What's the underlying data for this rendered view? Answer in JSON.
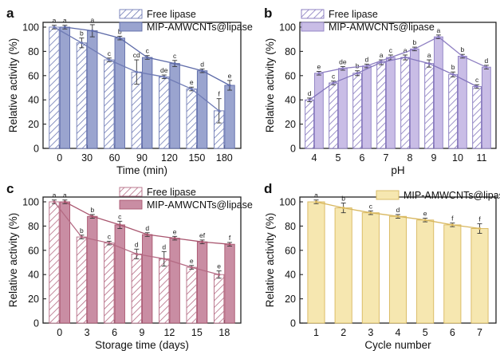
{
  "colors": {
    "blue_fill": "#9aa4cf",
    "blue_line": "#5d6aa8",
    "blue_hatch": "#6f7bb5",
    "purple_fill": "#c9bde6",
    "purple_line": "#8e7fc2",
    "purple_hatch": "#8476bd",
    "pink_fill": "#c98da3",
    "pink_line": "#a9566f",
    "pink_hatch": "#b46a83",
    "yellow_fill": "#f6e7b0",
    "yellow_line": "#d8b75e"
  },
  "chart_data": [
    {
      "panel": "a",
      "type": "bar",
      "xlabel": "Time (min)",
      "ylabel": "Relative activity (%)",
      "categories": [
        "0",
        "30",
        "60",
        "90",
        "120",
        "150",
        "180"
      ],
      "ylim": [
        0,
        100
      ],
      "yticks": [
        "0",
        "20",
        "40",
        "60",
        "80",
        "100"
      ],
      "legend_position": "top-right",
      "series": [
        {
          "name": "Free lipase",
          "style": "hatched",
          "values": [
            100,
            87,
            73,
            63,
            59,
            49,
            31
          ],
          "errors": [
            1.5,
            4,
            1.5,
            10,
            1.5,
            1.5,
            10
          ],
          "labels": [
            "a",
            "b",
            "c",
            "cd",
            "de",
            "e",
            "f"
          ]
        },
        {
          "name": "MIP-AMWCNTs@lipase",
          "style": "solid",
          "values": [
            100,
            97,
            91,
            75,
            70,
            64,
            52
          ],
          "errors": [
            1.5,
            5,
            1.5,
            1.5,
            2.5,
            1.5,
            4
          ],
          "labels": [
            "a",
            "a",
            "b",
            "c",
            "c",
            "d",
            "e"
          ]
        }
      ]
    },
    {
      "panel": "b",
      "type": "bar",
      "xlabel": "pH",
      "ylabel": "Relative activity (%)",
      "categories": [
        "4",
        "5",
        "6",
        "7",
        "8",
        "9",
        "10",
        "11"
      ],
      "ylim": [
        0,
        100
      ],
      "yticks": [
        "0",
        "20",
        "40",
        "60",
        "80",
        "100"
      ],
      "legend_position": "top-left",
      "series": [
        {
          "name": "Free lipase",
          "style": "hatched",
          "values": [
            40,
            54,
            62,
            71,
            75,
            70,
            61,
            51
          ],
          "errors": [
            1.5,
            1.5,
            2,
            2,
            2,
            3,
            2,
            1.5
          ],
          "labels": [
            "d",
            "c",
            "b",
            "a",
            "a",
            "a",
            "b",
            "c"
          ]
        },
        {
          "name": "MIP-AMWCNTs@lipase",
          "style": "solid",
          "values": [
            62,
            66,
            68,
            75,
            82,
            92,
            76,
            67
          ],
          "errors": [
            1.5,
            1.5,
            1.5,
            2,
            1.5,
            1.5,
            1.5,
            1.5
          ],
          "labels": [
            "e",
            "de",
            "d",
            "c",
            "b",
            "a",
            "b",
            "d"
          ]
        }
      ]
    },
    {
      "panel": "c",
      "type": "bar",
      "xlabel": "Storage time (days)",
      "ylabel": "Relative activity (%)",
      "categories": [
        "0",
        "3",
        "6",
        "9",
        "12",
        "15",
        "18"
      ],
      "ylim": [
        0,
        100
      ],
      "yticks": [
        "0",
        "20",
        "40",
        "60",
        "80",
        "100"
      ],
      "legend_position": "top-right",
      "series": [
        {
          "name": "Free lipase",
          "style": "hatched",
          "values": [
            100,
            71,
            66,
            57,
            53,
            46,
            40
          ],
          "errors": [
            1.5,
            1.5,
            1.5,
            4,
            6,
            1.5,
            3
          ],
          "labels": [
            "a",
            "b",
            "c",
            "d",
            "d",
            "e",
            "e"
          ]
        },
        {
          "name": "MIP-AMWCNTs@lipase",
          "style": "solid",
          "values": [
            100,
            88,
            81,
            73,
            70,
            67,
            65
          ],
          "errors": [
            1.5,
            1.5,
            3,
            1.5,
            1.5,
            1.5,
            1.5
          ],
          "labels": [
            "a",
            "b",
            "c",
            "d",
            "e",
            "ef",
            "f"
          ]
        }
      ]
    },
    {
      "panel": "d",
      "type": "bar",
      "xlabel": "Cycle number",
      "ylabel": "Relative activity (%)",
      "categories": [
        "1",
        "2",
        "3",
        "4",
        "5",
        "6",
        "7"
      ],
      "ylim": [
        0,
        100
      ],
      "yticks": [
        "0",
        "20",
        "40",
        "60",
        "80",
        "100"
      ],
      "legend_position": "top-right",
      "series": [
        {
          "name": "MIP-AMWCNTs@lipase",
          "style": "solid",
          "values": [
            100,
            95,
            91,
            88,
            85,
            81,
            78
          ],
          "errors": [
            1.5,
            4,
            1.5,
            1.5,
            1.5,
            1.5,
            4
          ],
          "labels": [
            "a",
            "b",
            "c",
            "d",
            "e",
            "f",
            "f"
          ]
        }
      ]
    }
  ]
}
